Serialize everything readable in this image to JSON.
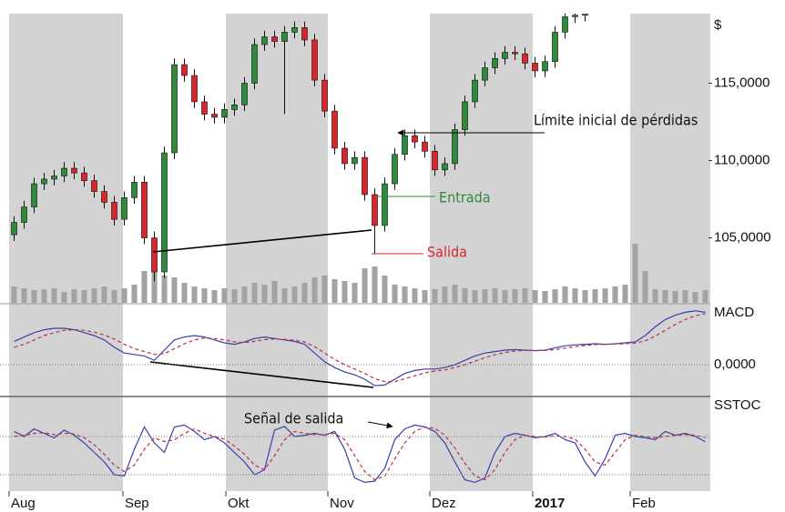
{
  "chart_data": {
    "type": "candlestick",
    "xlim": [
      0,
      70
    ],
    "xticks": [
      {
        "value": 0,
        "label": "Aug"
      },
      {
        "value": 11.36,
        "label": "Sep"
      },
      {
        "value": 21.64,
        "label": "Okt"
      },
      {
        "value": 31.82,
        "label": "Nov"
      },
      {
        "value": 42,
        "label": "Dez"
      },
      {
        "value": 52.27,
        "label": "2017"
      },
      {
        "value": 62,
        "label": "Feb"
      }
    ],
    "shade_alternate": true,
    "shade_color": "#d3d3d3",
    "price": {
      "label": "$",
      "ylim": [
        100.8,
        119.5
      ],
      "yticks": [
        {
          "value": 105,
          "label": "105,0000"
        },
        {
          "value": 110,
          "label": "110,0000"
        },
        {
          "value": 115,
          "label": "115,0000"
        }
      ],
      "up_color": "#2f8a3c",
      "down_color": "#d8262e",
      "open": [
        105.2,
        106,
        107,
        108.5,
        108.8,
        109,
        109.5,
        109.2,
        108.7,
        108,
        107.3,
        106.2,
        107.6,
        108.6,
        105,
        102.8,
        110.5,
        116.2,
        115.5,
        113.8,
        113,
        112.8,
        113.3,
        113.6,
        115,
        117.5,
        118,
        117.7,
        118.3,
        118.6,
        117.8,
        115.2,
        113.2,
        110.8,
        109.8,
        110.2,
        107.8,
        105.8,
        108.5,
        110.4,
        111.6,
        111.2,
        110.6,
        109.4,
        109.8,
        112,
        113.8,
        115.2,
        116,
        116.6,
        117,
        116.9,
        116.3,
        115.8,
        116.4,
        118.3,
        119.3,
        119.4,
        null,
        null,
        null,
        null,
        null,
        null,
        null,
        null,
        null,
        null,
        null,
        null
      ],
      "high": [
        106.4,
        107.4,
        108.9,
        109.2,
        109.4,
        109.9,
        109.9,
        109.6,
        109.1,
        108.4,
        107.7,
        108,
        109,
        109,
        105.4,
        110.9,
        116.6,
        116.6,
        115.9,
        114.2,
        113.4,
        113.7,
        114,
        115.4,
        117.9,
        118.4,
        118.4,
        118.7,
        119,
        119,
        118.2,
        115.6,
        113.6,
        111.2,
        110.6,
        110.6,
        108.2,
        108.9,
        110.8,
        112,
        112,
        111.6,
        111,
        110.2,
        112.4,
        114.2,
        115.6,
        116.4,
        117,
        117.4,
        117.4,
        117.3,
        116.7,
        116.8,
        118.7,
        119.7,
        119.8,
        120.2,
        null,
        null,
        null,
        null,
        null,
        null,
        null,
        null,
        null,
        null,
        null,
        null
      ],
      "low": [
        104.8,
        105.6,
        106.6,
        108.1,
        108.4,
        108.6,
        108.8,
        108.3,
        107.6,
        106.9,
        105.8,
        105.8,
        107.2,
        104.6,
        102.2,
        102.4,
        110.1,
        115.1,
        113.4,
        112.6,
        112.4,
        112.4,
        112.9,
        113.2,
        114.6,
        117.1,
        117.3,
        113,
        117.9,
        117.4,
        114.8,
        112.8,
        110.4,
        109.4,
        109.4,
        107.4,
        104,
        105.4,
        108.1,
        110,
        110.8,
        110.2,
        109,
        109,
        109.4,
        111.6,
        113.4,
        114.8,
        115.6,
        116.2,
        116.5,
        115.9,
        115.4,
        115.4,
        116,
        117.9,
        118.9,
        119,
        null,
        null,
        null,
        null,
        null,
        null,
        null,
        null,
        null,
        null,
        null,
        null
      ],
      "close": [
        106,
        107,
        108.5,
        108.8,
        109,
        109.5,
        109.2,
        108.7,
        108,
        107.3,
        106.2,
        107.6,
        108.6,
        105,
        102.8,
        110.5,
        116.2,
        115.5,
        113.8,
        113,
        112.8,
        113.3,
        113.6,
        115,
        117.5,
        118,
        117.7,
        118.3,
        118.6,
        117.8,
        115.2,
        113.2,
        110.8,
        109.8,
        110.2,
        107.8,
        105.8,
        108.5,
        110.4,
        111.6,
        111.2,
        110.6,
        109.4,
        109.8,
        112,
        113.8,
        115.2,
        116,
        116.6,
        117,
        116.9,
        116.3,
        115.8,
        116.4,
        118.3,
        119.3,
        119.4,
        119.8,
        null,
        null,
        null,
        null,
        null,
        null,
        null,
        null,
        null,
        null,
        null,
        null
      ]
    },
    "volume": {
      "ylim": [
        0,
        100
      ],
      "color": "#a3a3a3",
      "values": [
        18,
        16,
        14,
        15,
        16,
        12,
        15,
        14,
        16,
        18,
        14,
        16,
        20,
        35,
        65,
        30,
        28,
        22,
        18,
        16,
        14,
        16,
        15,
        18,
        22,
        20,
        24,
        16,
        18,
        22,
        28,
        30,
        26,
        24,
        22,
        38,
        40,
        30,
        20,
        18,
        16,
        14,
        15,
        18,
        20,
        16,
        14,
        15,
        16,
        14,
        15,
        16,
        14,
        13,
        15,
        18,
        16,
        14,
        15,
        16,
        18,
        20,
        65,
        35,
        15,
        14,
        13,
        14,
        12,
        14
      ]
    },
    "macd": {
      "label": "MACD",
      "ylim": [
        -1,
        2
      ],
      "yticks": [
        {
          "value": 0,
          "label": "0,0000"
        }
      ],
      "series": [
        {
          "color": "#3a40a8",
          "values": [
            0.8,
            0.95,
            1.1,
            1.2,
            1.25,
            1.25,
            1.2,
            1.1,
            1.0,
            0.85,
            0.6,
            0.4,
            0.35,
            0.3,
            0.15,
            0.5,
            0.85,
            0.95,
            1.0,
            0.95,
            0.85,
            0.75,
            0.7,
            0.78,
            0.9,
            0.95,
            0.9,
            0.85,
            0.8,
            0.7,
            0.4,
            0.1,
            -0.1,
            -0.25,
            -0.35,
            -0.5,
            -0.72,
            -0.7,
            -0.5,
            -0.3,
            -0.2,
            -0.15,
            -0.15,
            -0.1,
            0.0,
            0.15,
            0.3,
            0.4,
            0.45,
            0.5,
            0.52,
            0.5,
            0.48,
            0.5,
            0.58,
            0.65,
            0.68,
            0.7,
            0.72,
            0.7,
            0.72,
            0.75,
            0.78,
            1.0,
            1.3,
            1.55,
            1.7,
            1.8,
            1.85,
            1.8
          ]
        },
        {
          "color": "#b8304a",
          "dashed": true,
          "values": [
            0.6,
            0.7,
            0.85,
            1.0,
            1.1,
            1.18,
            1.2,
            1.18,
            1.12,
            1.02,
            0.88,
            0.7,
            0.55,
            0.45,
            0.35,
            0.38,
            0.55,
            0.72,
            0.85,
            0.92,
            0.9,
            0.85,
            0.78,
            0.76,
            0.8,
            0.86,
            0.88,
            0.87,
            0.84,
            0.78,
            0.62,
            0.4,
            0.18,
            0.0,
            -0.15,
            -0.3,
            -0.48,
            -0.58,
            -0.58,
            -0.48,
            -0.38,
            -0.28,
            -0.22,
            -0.18,
            -0.1,
            0.0,
            0.12,
            0.24,
            0.34,
            0.42,
            0.47,
            0.49,
            0.49,
            0.49,
            0.52,
            0.57,
            0.62,
            0.66,
            0.69,
            0.7,
            0.71,
            0.72,
            0.74,
            0.82,
            0.98,
            1.18,
            1.38,
            1.55,
            1.68,
            1.75
          ]
        }
      ]
    },
    "sstoc": {
      "label": "SSTOC",
      "ylim": [
        0,
        100
      ],
      "levels": [
        20,
        80
      ],
      "series": [
        {
          "color": "#3a40a8",
          "values": [
            88,
            80,
            92,
            85,
            78,
            90,
            82,
            70,
            55,
            40,
            20,
            18,
            60,
            95,
            70,
            55,
            95,
            98,
            88,
            75,
            80,
            70,
            55,
            40,
            20,
            28,
            90,
            96,
            80,
            82,
            85,
            82,
            88,
            60,
            15,
            8,
            10,
            30,
            75,
            92,
            98,
            95,
            88,
            70,
            40,
            12,
            8,
            15,
            55,
            80,
            85,
            82,
            78,
            80,
            85,
            75,
            70,
            40,
            18,
            45,
            82,
            85,
            80,
            78,
            75,
            88,
            82,
            85,
            80,
            72
          ]
        },
        {
          "color": "#b8304a",
          "dashed": true,
          "values": [
            80,
            82,
            85,
            86,
            83,
            85,
            84,
            78,
            67,
            52,
            35,
            25,
            35,
            60,
            78,
            72,
            75,
            85,
            92,
            85,
            80,
            76,
            65,
            52,
            35,
            28,
            50,
            75,
            88,
            85,
            83,
            83,
            85,
            75,
            50,
            25,
            12,
            18,
            45,
            70,
            88,
            95,
            93,
            82,
            62,
            38,
            18,
            12,
            28,
            55,
            75,
            82,
            80,
            79,
            81,
            80,
            76,
            60,
            40,
            35,
            55,
            75,
            82,
            80,
            78,
            80,
            82,
            83,
            82,
            78
          ]
        }
      ]
    },
    "annotations": [
      "Límite inicial de pérdidas",
      "Entrada",
      "Salida",
      "Señal de salida"
    ]
  }
}
